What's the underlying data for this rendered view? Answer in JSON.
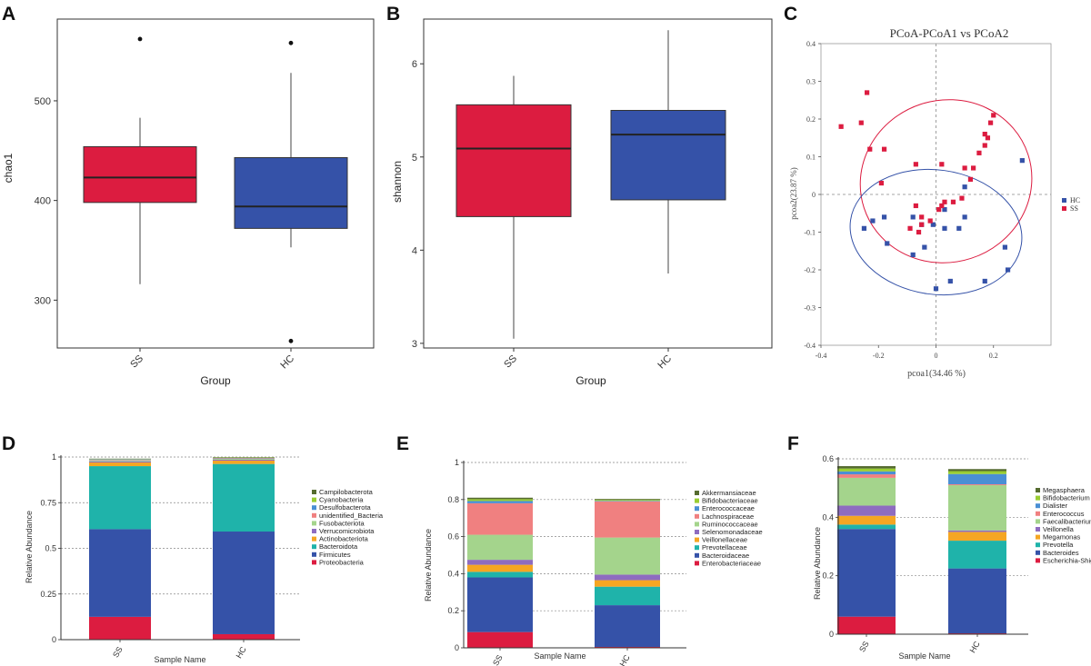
{
  "chart_data": [
    {
      "panel": "A",
      "type": "box",
      "xlabel": "Group",
      "ylabel": "chao1",
      "ylim": [
        252,
        582
      ],
      "yticks": [
        "300",
        "400",
        "500"
      ],
      "groups": [
        {
          "name": "SS",
          "color": "#dc1c40",
          "min": 316,
          "q1": 398,
          "median": 423,
          "q3": 454,
          "max": 483,
          "outliers": [
            562
          ]
        },
        {
          "name": "HC",
          "color": "#3552a8",
          "min": 353,
          "q1": 372,
          "median": 394,
          "q3": 443,
          "max": 528,
          "outliers": [
            558,
            259
          ]
        }
      ]
    },
    {
      "panel": "B",
      "type": "box",
      "xlabel": "Group",
      "ylabel": "shannon",
      "ylim": [
        2.95,
        6.48
      ],
      "yticks": [
        "3",
        "4",
        "5",
        "6"
      ],
      "groups": [
        {
          "name": "SS",
          "color": "#dc1c40",
          "min": 3.05,
          "q1": 4.36,
          "median": 5.09,
          "q3": 5.56,
          "max": 5.87,
          "outliers": []
        },
        {
          "name": "HC",
          "color": "#3552a8",
          "min": 3.75,
          "q1": 4.54,
          "median": 5.24,
          "q3": 5.5,
          "max": 6.36,
          "outliers": []
        }
      ]
    },
    {
      "panel": "C",
      "type": "scatter",
      "title": "PCoA-PCoA1 vs PCoA2",
      "xlabel": "pcoa1(34.46 %)",
      "ylabel": "pcoa2(23.87 %)",
      "xlim": [
        -0.4,
        0.4
      ],
      "ylim": [
        -0.4,
        0.4
      ],
      "xticks": [
        "-0.4",
        "-0.2",
        "0",
        "0.2"
      ],
      "yticks": [
        "-0.4",
        "-0.3",
        "-0.2",
        "-0.1",
        "0",
        "0.1",
        "0.2",
        "0.3",
        "0.4"
      ],
      "series": [
        {
          "name": "HC",
          "color": "#3552a8",
          "points": [
            [
              0.3,
              0.09
            ],
            [
              0.24,
              -0.14
            ],
            [
              0.25,
              -0.2
            ],
            [
              0.17,
              -0.23
            ],
            [
              0.05,
              -0.23
            ],
            [
              0,
              -0.25
            ],
            [
              0.03,
              -0.09
            ],
            [
              0.1,
              0.02
            ],
            [
              0.1,
              -0.06
            ],
            [
              0.08,
              -0.09
            ],
            [
              0.03,
              -0.04
            ],
            [
              -0.04,
              -0.14
            ],
            [
              -0.08,
              -0.16
            ],
            [
              -0.05,
              -0.08
            ],
            [
              -0.08,
              -0.06
            ],
            [
              -0.17,
              -0.13
            ],
            [
              -0.18,
              -0.06
            ],
            [
              -0.22,
              -0.07
            ],
            [
              -0.25,
              -0.09
            ],
            [
              -0.01,
              -0.08
            ]
          ]
        },
        {
          "name": "SS",
          "color": "#dc1c40",
          "points": [
            [
              -0.33,
              0.18
            ],
            [
              -0.24,
              0.27
            ],
            [
              -0.26,
              0.19
            ],
            [
              -0.23,
              0.12
            ],
            [
              -0.18,
              0.12
            ],
            [
              -0.19,
              0.03
            ],
            [
              -0.07,
              0.08
            ],
            [
              0.02,
              0.08
            ],
            [
              0.1,
              0.07
            ],
            [
              0.13,
              0.07
            ],
            [
              0.12,
              0.04
            ],
            [
              0.15,
              0.11
            ],
            [
              0.17,
              0.13
            ],
            [
              0.17,
              0.16
            ],
            [
              0.19,
              0.19
            ],
            [
              0.2,
              0.21
            ],
            [
              0.18,
              0.15
            ],
            [
              0.06,
              -0.02
            ],
            [
              0.09,
              -0.01
            ],
            [
              0.03,
              -0.02
            ],
            [
              0.02,
              -0.03
            ],
            [
              -0.02,
              -0.07
            ],
            [
              -0.05,
              -0.06
            ],
            [
              -0.06,
              -0.1
            ],
            [
              -0.07,
              -0.03
            ],
            [
              0.01,
              -0.04
            ],
            [
              -0.09,
              -0.09
            ],
            [
              -0.05,
              -0.08
            ]
          ]
        }
      ],
      "ellipses": [
        {
          "series": "SS",
          "cx": 0.035,
          "cy": 0.035,
          "rx": 0.3,
          "ry": 0.215,
          "angle_deg": 18
        },
        {
          "series": "HC",
          "cx": 0.0,
          "cy": -0.1,
          "rx": 0.3,
          "ry": 0.165,
          "angle_deg": -8
        }
      ]
    },
    {
      "panel": "D",
      "type": "stacked-bar",
      "xlabel": "Sample Name",
      "ylabel": "Relative Abundance",
      "ylim": [
        0,
        1
      ],
      "yticks": [
        "0",
        "0.25",
        "0.5",
        "0.75",
        "1"
      ],
      "categories": [
        "SS",
        "HC"
      ],
      "series": [
        {
          "name": "Proteobacteria",
          "color": "#dc1c40",
          "values": [
            0.125,
            0.03
          ]
        },
        {
          "name": "Firmicutes",
          "color": "#3552a8",
          "values": [
            0.48,
            0.562
          ]
        },
        {
          "name": "Bacteroidota",
          "color": "#1fb3aa",
          "values": [
            0.345,
            0.37
          ]
        },
        {
          "name": "Actinobacteriota",
          "color": "#f5a623",
          "values": [
            0.02,
            0.018
          ]
        },
        {
          "name": "Verrucomicrobiota",
          "color": "#8e6cc0",
          "values": [
            0.006,
            0.005
          ]
        },
        {
          "name": "Fusobacteriota",
          "color": "#a4d48c",
          "values": [
            0.005,
            0.005
          ]
        },
        {
          "name": "unidentified_Bacteria",
          "color": "#f08080",
          "values": [
            0.003,
            0.003
          ]
        },
        {
          "name": "Desulfobacterota",
          "color": "#4a8fd4",
          "values": [
            0.003,
            0.002
          ]
        },
        {
          "name": "Cyanobacteria",
          "color": "#9acd32",
          "values": [
            0.002,
            0.002
          ]
        },
        {
          "name": "Campilobacterota",
          "color": "#556b2f",
          "values": [
            0.002,
            0.002
          ]
        }
      ]
    },
    {
      "panel": "E",
      "type": "stacked-bar",
      "xlabel": "Sample Name",
      "ylabel": "Relative Abundance",
      "ylim": [
        0,
        1
      ],
      "yticks": [
        "0",
        "0.2",
        "0.4",
        "0.6",
        "0.8",
        "1"
      ],
      "categories": [
        "SS",
        "HC"
      ],
      "series": [
        {
          "name": "Enterobacteriaceae",
          "color": "#dc1c40",
          "values": [
            0.085,
            0.005
          ]
        },
        {
          "name": "Bacteroidaceae",
          "color": "#3552a8",
          "values": [
            0.295,
            0.225
          ]
        },
        {
          "name": "Prevotellaceae",
          "color": "#1fb3aa",
          "values": [
            0.03,
            0.1
          ]
        },
        {
          "name": "Veillonellaceae",
          "color": "#f5a623",
          "values": [
            0.038,
            0.035
          ]
        },
        {
          "name": "Selenomonadaceae",
          "color": "#8e6cc0",
          "values": [
            0.027,
            0.03
          ]
        },
        {
          "name": "Ruminococcaceae",
          "color": "#a4d48c",
          "values": [
            0.135,
            0.2
          ]
        },
        {
          "name": "Lachnospiraceae",
          "color": "#f08080",
          "values": [
            0.17,
            0.195
          ]
        },
        {
          "name": "Enterococcaceae",
          "color": "#4a8fd4",
          "values": [
            0.012,
            0.003
          ]
        },
        {
          "name": "Bifidobacteriaceae",
          "color": "#9acd32",
          "values": [
            0.01,
            0.005
          ]
        },
        {
          "name": "Akkermansiaceae",
          "color": "#556b2f",
          "values": [
            0.008,
            0.005
          ]
        }
      ]
    },
    {
      "panel": "F",
      "type": "stacked-bar",
      "xlabel": "Sample Name",
      "ylabel": "Relative Abundance",
      "ylim": [
        0,
        0.6
      ],
      "yticks": [
        "0",
        "0.2",
        "0.4",
        "0.6"
      ],
      "categories": [
        "SS",
        "HC"
      ],
      "series": [
        {
          "name": "Escherichia-Shigella",
          "color": "#dc1c40",
          "values": [
            0.06,
            0.003
          ]
        },
        {
          "name": "Bacteroides",
          "color": "#3552a8",
          "values": [
            0.3,
            0.222
          ]
        },
        {
          "name": "Prevotella",
          "color": "#1fb3aa",
          "values": [
            0.015,
            0.095
          ]
        },
        {
          "name": "Megamonas",
          "color": "#f5a623",
          "values": [
            0.03,
            0.03
          ]
        },
        {
          "name": "Veillonella",
          "color": "#8e6cc0",
          "values": [
            0.035,
            0.005
          ]
        },
        {
          "name": "Faecalibacterium",
          "color": "#a4d48c",
          "values": [
            0.095,
            0.155
          ]
        },
        {
          "name": "Enterococcus",
          "color": "#f08080",
          "values": [
            0.012,
            0.003
          ]
        },
        {
          "name": "Dialister",
          "color": "#4a8fd4",
          "values": [
            0.01,
            0.035
          ]
        },
        {
          "name": "Bifidobacterium",
          "color": "#9acd32",
          "values": [
            0.01,
            0.01
          ]
        },
        {
          "name": "Megasphaera",
          "color": "#556b2f",
          "values": [
            0.008,
            0.007
          ]
        }
      ]
    }
  ]
}
